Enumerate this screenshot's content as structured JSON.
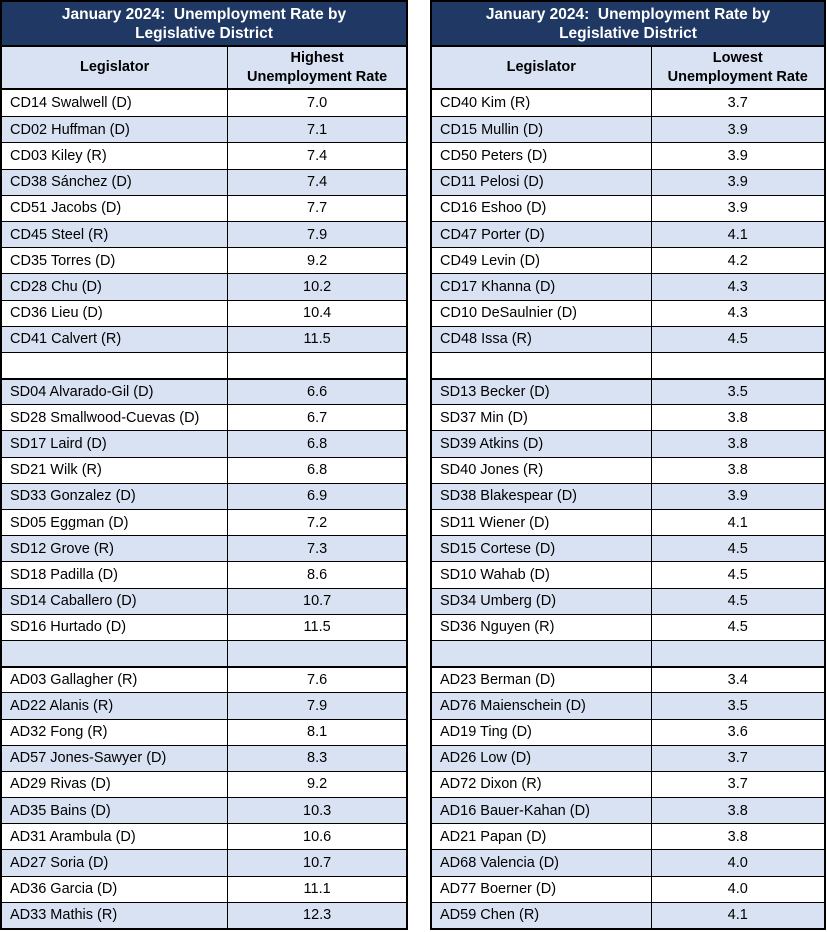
{
  "colors": {
    "header_navy": "#1F3864",
    "band_blue": "#D9E2F3",
    "text": "#000000",
    "title_text": "#FFFFFF",
    "border": "#000000",
    "background": "#FFFFFF"
  },
  "tables": [
    {
      "id": "highest",
      "title_line1": "January 2024:  Unemployment Rate by",
      "title_line2": "Legislative District",
      "col_legislator": "Legislator",
      "rate_line1": "Highest",
      "rate_line2": "Unemployment Rate",
      "rows": [
        {
          "legislator": "CD14 Swalwell (D)",
          "rate": "7.0"
        },
        {
          "legislator": "CD02 Huffman (D)",
          "rate": "7.1"
        },
        {
          "legislator": "CD03 Kiley (R)",
          "rate": "7.4"
        },
        {
          "legislator": "CD38 Sánchez (D)",
          "rate": "7.4"
        },
        {
          "legislator": "CD51 Jacobs (D)",
          "rate": "7.7"
        },
        {
          "legislator": "CD45 Steel (R)",
          "rate": "7.9"
        },
        {
          "legislator": "CD35 Torres (D)",
          "rate": "9.2"
        },
        {
          "legislator": "CD28 Chu (D)",
          "rate": "10.2"
        },
        {
          "legislator": "CD36 Lieu (D)",
          "rate": "10.4"
        },
        {
          "legislator": "CD41 Calvert (R)",
          "rate": "11.5"
        },
        {
          "legislator": "",
          "rate": "",
          "blank": true
        },
        {
          "legislator": "SD04 Alvarado-Gil (D)",
          "rate": "6.6",
          "section_start": true
        },
        {
          "legislator": "SD28 Smallwood-Cuevas (D)",
          "rate": "6.7"
        },
        {
          "legislator": "SD17 Laird (D)",
          "rate": "6.8"
        },
        {
          "legislator": "SD21 Wilk (R)",
          "rate": "6.8"
        },
        {
          "legislator": "SD33 Gonzalez (D)",
          "rate": "6.9"
        },
        {
          "legislator": "SD05 Eggman (D)",
          "rate": "7.2"
        },
        {
          "legislator": "SD12 Grove (R)",
          "rate": "7.3"
        },
        {
          "legislator": "SD18 Padilla (D)",
          "rate": "8.6"
        },
        {
          "legislator": "SD14 Caballero (D)",
          "rate": "10.7"
        },
        {
          "legislator": "SD16 Hurtado (D)",
          "rate": "11.5"
        },
        {
          "legislator": "",
          "rate": "",
          "blank": true
        },
        {
          "legislator": "AD03 Gallagher (R)",
          "rate": "7.6",
          "section_start": true
        },
        {
          "legislator": "AD22 Alanis (R)",
          "rate": "7.9"
        },
        {
          "legislator": "AD32 Fong (R)",
          "rate": "8.1"
        },
        {
          "legislator": "AD57 Jones-Sawyer (D)",
          "rate": "8.3"
        },
        {
          "legislator": "AD29 Rivas (D)",
          "rate": "9.2"
        },
        {
          "legislator": "AD35 Bains (D)",
          "rate": "10.3"
        },
        {
          "legislator": "AD31 Arambula (D)",
          "rate": "10.6"
        },
        {
          "legislator": "AD27 Soria (D)",
          "rate": "10.7"
        },
        {
          "legislator": "AD36 Garcia (D)",
          "rate": "11.1"
        },
        {
          "legislator": "AD33 Mathis (R)",
          "rate": "12.3"
        }
      ]
    },
    {
      "id": "lowest",
      "title_line1": "January 2024:  Unemployment Rate by",
      "title_line2": "Legislative District",
      "col_legislator": "Legislator",
      "rate_line1": "Lowest",
      "rate_line2": "Unemployment Rate",
      "rows": [
        {
          "legislator": "CD40 Kim (R)",
          "rate": "3.7"
        },
        {
          "legislator": "CD15 Mullin (D)",
          "rate": "3.9"
        },
        {
          "legislator": "CD50 Peters (D)",
          "rate": "3.9"
        },
        {
          "legislator": "CD11 Pelosi (D)",
          "rate": "3.9"
        },
        {
          "legislator": "CD16 Eshoo (D)",
          "rate": "3.9"
        },
        {
          "legislator": "CD47 Porter (D)",
          "rate": "4.1"
        },
        {
          "legislator": "CD49 Levin (D)",
          "rate": "4.2"
        },
        {
          "legislator": "CD17 Khanna (D)",
          "rate": "4.3"
        },
        {
          "legislator": "CD10 DeSaulnier (D)",
          "rate": "4.3"
        },
        {
          "legislator": "CD48 Issa (R)",
          "rate": "4.5"
        },
        {
          "legislator": "",
          "rate": "",
          "blank": true
        },
        {
          "legislator": "SD13 Becker (D)",
          "rate": "3.5",
          "section_start": true
        },
        {
          "legislator": "SD37 Min (D)",
          "rate": "3.8"
        },
        {
          "legislator": "SD39 Atkins (D)",
          "rate": "3.8"
        },
        {
          "legislator": "SD40 Jones (R)",
          "rate": "3.8"
        },
        {
          "legislator": "SD38 Blakespear (D)",
          "rate": "3.9"
        },
        {
          "legislator": "SD11 Wiener (D)",
          "rate": "4.1"
        },
        {
          "legislator": "SD15 Cortese (D)",
          "rate": "4.5"
        },
        {
          "legislator": "SD10 Wahab (D)",
          "rate": "4.5"
        },
        {
          "legislator": "SD34 Umberg (D)",
          "rate": "4.5"
        },
        {
          "legislator": "SD36 Nguyen (R)",
          "rate": "4.5"
        },
        {
          "legislator": "",
          "rate": "",
          "blank": true
        },
        {
          "legislator": "AD23 Berman (D)",
          "rate": "3.4",
          "section_start": true
        },
        {
          "legislator": "AD76 Maienschein (D)",
          "rate": "3.5"
        },
        {
          "legislator": "AD19 Ting (D)",
          "rate": "3.6"
        },
        {
          "legislator": "AD26 Low (D)",
          "rate": "3.7"
        },
        {
          "legislator": "AD72 Dixon (R)",
          "rate": "3.7"
        },
        {
          "legislator": "AD16 Bauer-Kahan (D)",
          "rate": "3.8"
        },
        {
          "legislator": "AD21 Papan (D)",
          "rate": "3.8"
        },
        {
          "legislator": "AD68 Valencia (D)",
          "rate": "4.0"
        },
        {
          "legislator": "AD77 Boerner (D)",
          "rate": "4.0"
        },
        {
          "legislator": "AD59 Chen (R)",
          "rate": "4.1"
        }
      ]
    }
  ]
}
